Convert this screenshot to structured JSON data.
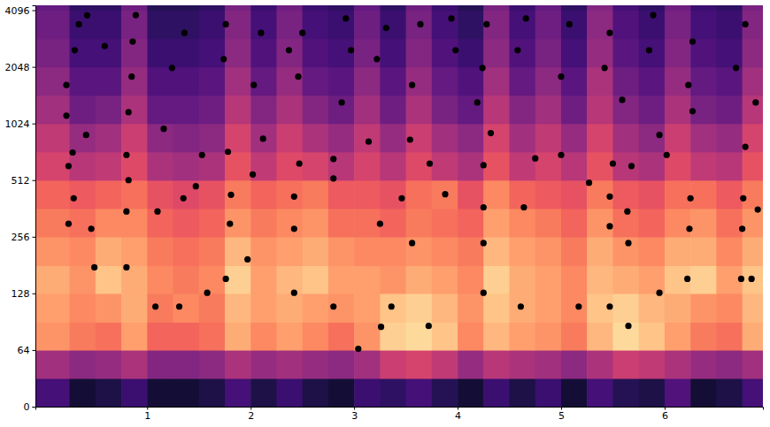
{
  "chart_data": {
    "type": "heatmap",
    "log": "y",
    "xlim": [
      -0.08,
      6.95
    ],
    "ylim": [
      0,
      4350
    ],
    "xticks": [
      1,
      2,
      3,
      4,
      5,
      6
    ],
    "yticks": [
      0,
      64,
      128,
      256,
      512,
      1024,
      2048,
      4096
    ],
    "zlim": [
      -80,
      0
    ],
    "time_edges": [
      -0.08,
      0.25,
      0.5,
      0.75,
      1,
      1.25,
      1.5,
      1.75,
      2,
      2.25,
      2.5,
      2.75,
      3,
      3.25,
      3.5,
      3.75,
      4,
      4.25,
      4.5,
      4.75,
      5,
      5.25,
      5.5,
      5.75,
      6,
      6.25,
      6.5,
      6.75,
      7
    ],
    "freq_edges": [
      0,
      32,
      64,
      90,
      128,
      180,
      256,
      362,
      512,
      724,
      1024,
      1448,
      2048,
      2896,
      4096,
      4350
    ],
    "cells": [
      [
        -62,
        -72,
        -70,
        -64,
        -72,
        -72,
        -70,
        -62,
        -70,
        -64,
        -70,
        -72,
        -64,
        -66,
        -62,
        -68,
        -72,
        -64,
        -70,
        -64,
        -72,
        -62,
        -68,
        -70,
        -60,
        -72,
        -70,
        -62
      ],
      [
        -44,
        -48,
        -46,
        -42,
        -50,
        -50,
        -48,
        -42,
        -46,
        -44,
        -46,
        -48,
        -44,
        -36,
        -34,
        -38,
        -46,
        -40,
        -42,
        -44,
        -48,
        -42,
        -36,
        -38,
        -42,
        -46,
        -48,
        -44
      ],
      [
        -18,
        -22,
        -24,
        -16,
        -26,
        -26,
        -24,
        -14,
        -20,
        -16,
        -20,
        -24,
        -18,
        -8,
        -6,
        -10,
        -20,
        -12,
        -16,
        -18,
        -22,
        -12,
        -6,
        -10,
        -16,
        -22,
        -24,
        -14
      ],
      [
        -16,
        -20,
        -18,
        -14,
        -22,
        -20,
        -22,
        -12,
        -16,
        -14,
        -16,
        -18,
        -16,
        -10,
        -8,
        -12,
        -18,
        -10,
        -14,
        -16,
        -20,
        -10,
        -8,
        -12,
        -14,
        -18,
        -20,
        -12
      ],
      [
        -14,
        -18,
        -10,
        -14,
        -20,
        -22,
        -20,
        -8,
        -16,
        -12,
        -10,
        -16,
        -16,
        -18,
        -14,
        -16,
        -20,
        -8,
        -14,
        -16,
        -20,
        -12,
        -14,
        -16,
        -10,
        -8,
        -16,
        -10
      ],
      [
        -18,
        -20,
        -14,
        -16,
        -22,
        -24,
        -22,
        -12,
        -18,
        -16,
        -14,
        -18,
        -20,
        -20,
        -18,
        -20,
        -22,
        -12,
        -16,
        -18,
        -22,
        -14,
        -18,
        -20,
        -14,
        -14,
        -20,
        -14
      ],
      [
        -22,
        -24,
        -20,
        -20,
        -26,
        -28,
        -26,
        -18,
        -22,
        -20,
        -18,
        -24,
        -24,
        -26,
        -22,
        -24,
        -26,
        -16,
        -20,
        -22,
        -26,
        -18,
        -24,
        -26,
        -20,
        -18,
        -24,
        -18
      ],
      [
        -26,
        -28,
        -26,
        -24,
        -30,
        -32,
        -30,
        -22,
        -26,
        -24,
        -22,
        -28,
        -28,
        -30,
        -24,
        -22,
        -30,
        -20,
        -26,
        -28,
        -30,
        -22,
        -28,
        -30,
        -24,
        -24,
        -28,
        -22
      ],
      [
        -34,
        -40,
        -38,
        -32,
        -42,
        -44,
        -42,
        -30,
        -38,
        -32,
        -34,
        -40,
        -34,
        -40,
        -32,
        -38,
        -42,
        -30,
        -38,
        -34,
        -40,
        -30,
        -40,
        -42,
        -32,
        -38,
        -40,
        -30
      ],
      [
        -38,
        -46,
        -44,
        -36,
        -48,
        -50,
        -48,
        -34,
        -44,
        -36,
        -42,
        -46,
        -38,
        -46,
        -36,
        -44,
        -48,
        -34,
        -44,
        -38,
        -46,
        -34,
        -44,
        -48,
        -36,
        -44,
        -46,
        -34
      ],
      [
        -44,
        -54,
        -52,
        -42,
        -56,
        -56,
        -54,
        -40,
        -50,
        -42,
        -50,
        -54,
        -44,
        -54,
        -42,
        -52,
        -56,
        -40,
        -50,
        -44,
        -54,
        -40,
        -50,
        -54,
        -42,
        -52,
        -54,
        -40
      ],
      [
        -48,
        -58,
        -58,
        -46,
        -60,
        -60,
        -58,
        -44,
        -56,
        -46,
        -56,
        -58,
        -48,
        -58,
        -46,
        -56,
        -60,
        -44,
        -56,
        -48,
        -58,
        -42,
        -54,
        -58,
        -46,
        -56,
        -58,
        -44
      ],
      [
        -52,
        -62,
        -62,
        -50,
        -64,
        -64,
        -62,
        -48,
        -60,
        -50,
        -60,
        -62,
        -52,
        -62,
        -50,
        -60,
        -64,
        -48,
        -60,
        -52,
        -62,
        -46,
        -58,
        -62,
        -50,
        -60,
        -62,
        -48
      ],
      [
        -54,
        -64,
        -64,
        -52,
        -66,
        -66,
        -64,
        -50,
        -62,
        -52,
        -62,
        -64,
        -54,
        -64,
        -52,
        -62,
        -66,
        -50,
        -62,
        -54,
        -64,
        -48,
        -60,
        -64,
        -52,
        -62,
        -64,
        -50
      ],
      [
        -56,
        -66,
        -66,
        -54,
        -68,
        -68,
        -66,
        -52,
        -64,
        -54,
        -64,
        -66,
        -56,
        -66,
        -54,
        -64,
        -68,
        -52,
        -64,
        -56,
        -66,
        -50,
        -62,
        -66,
        -54,
        -64,
        -66,
        -52
      ]
    ],
    "series": [
      {
        "type": "scatter",
        "color": "#000000",
        "marker": "circle",
        "x": [
          0.24,
          0.29,
          0.49,
          0.46,
          0.24,
          0.28,
          0.22,
          0.8,
          0.8,
          0.82,
          0.8,
          0.82,
          1.08,
          1.1,
          1.31,
          1.35,
          1.47,
          1.58,
          1.76,
          1.8,
          1.81,
          1.78,
          1.97,
          2.02,
          2.42,
          2.42,
          2.42,
          2.47,
          2.8,
          2.8,
          2.8,
          3.04,
          3.26,
          3.36,
          3.25,
          3.46,
          3.56,
          3.72,
          3.73,
          3.88,
          4.25,
          4.25,
          4.25,
          4.25,
          4.64,
          4.61,
          4.75,
          5.17,
          5.27,
          5.47,
          5.47,
          5.47,
          5.5,
          5.65,
          5.65,
          5.68,
          5.64,
          5.95,
          5.95,
          6.22,
          6.24,
          6.25,
          6.74,
          6.84,
          6.75,
          6.76,
          6.9,
          5.59,
          0.22,
          0.3,
          0.34,
          0.42,
          0.85,
          0.86,
          0.89,
          0.59,
          1.24,
          1.36,
          1.74,
          1.76,
          2.03,
          2.1,
          2.46,
          2.5,
          2.37,
          2.88,
          2.97,
          2.92,
          3.22,
          3.31,
          3.56,
          3.64,
          3.98,
          3.94,
          4.19,
          4.24,
          4.28,
          4.58,
          4.66,
          5.0,
          5.08,
          5.42,
          5.47,
          5.85,
          5.89,
          6.23,
          6.27,
          6.27,
          6.69,
          6.78,
          6.88,
          0.41,
          1.16,
          1.53,
          2.12,
          3.14,
          3.54,
          4.32,
          5.0,
          6.02,
          6.78
        ],
        "values": [
          300,
          410,
          176,
          282,
          608,
          718,
          1127,
          176,
          349,
          512,
          697,
          1176,
          109,
          349,
          109,
          410,
          475,
          129,
          153,
          300,
          428,
          724,
          194,
          549,
          129,
          282,
          419,
          627,
          109,
          523,
          663,
          65,
          85,
          109,
          300,
          410,
          237,
          86,
          627,
          431,
          129,
          237,
          367,
          614,
          367,
          109,
          668,
          109,
          496,
          109,
          291,
          419,
          627,
          237,
          86,
          608,
          349,
          129,
          890,
          153,
          282,
          410,
          153,
          153,
          282,
          410,
          357,
          1368,
          1640,
          2509,
          3450,
          3850,
          1818,
          2790,
          3860,
          2643,
          2022,
          3104,
          2253,
          3450,
          1640,
          3104,
          1818,
          3104,
          2509,
          1324,
          2509,
          3700,
          2253,
          3300,
          1640,
          3450,
          2509,
          3700,
          1324,
          2022,
          3450,
          2509,
          3700,
          1818,
          3450,
          2022,
          3104,
          2509,
          3860,
          1640,
          2790,
          1190,
          2022,
          3450,
          1324,
          890,
          960,
          697,
          850,
          820,
          840,
          910,
          697,
          697,
          770
        ]
      }
    ]
  }
}
